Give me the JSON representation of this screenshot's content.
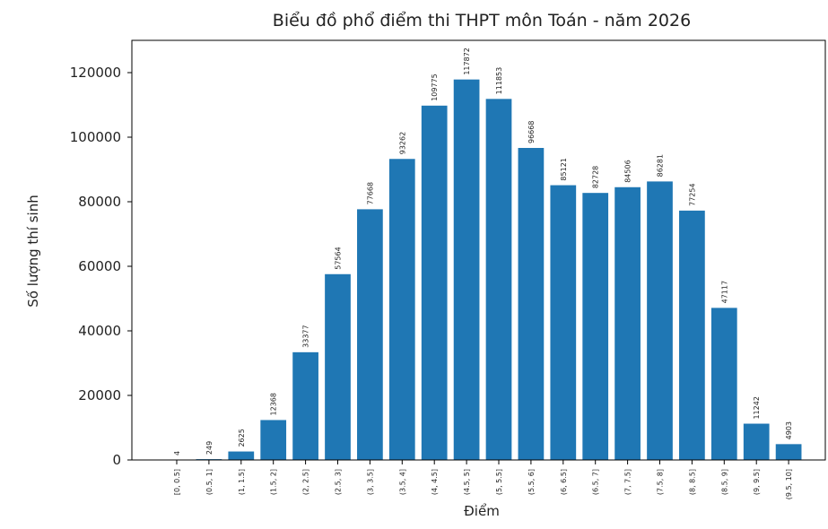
{
  "chart_data": {
    "type": "bar",
    "title": "Biểu đồ phổ điểm thi THPT môn Toán - năm 2026",
    "x_label": "Điểm",
    "y_label": "Số lượng thí sinh",
    "categories": [
      "[0, 0.5]",
      "(0.5, 1]",
      "(1, 1.5]",
      "(1.5, 2]",
      "(2, 2.5]",
      "(2.5, 3]",
      "(3, 3.5]",
      "(3.5, 4]",
      "(4, 4.5]",
      "(4.5, 5]",
      "(5, 5.5]",
      "(5.5, 6]",
      "(6, 6.5]",
      "(6.5, 7]",
      "(7, 7.5]",
      "(7.5, 8]",
      "(8, 8.5]",
      "(8.5, 9]",
      "(9, 9.5]",
      "(9.5, 10]"
    ],
    "values": [
      4,
      249,
      2625,
      12368,
      33377,
      57564,
      77668,
      93262,
      109775,
      117872,
      111853,
      96668,
      85121,
      82728,
      84506,
      86281,
      77254,
      47117,
      11242,
      4903
    ],
    "color": "#1f77b4",
    "ylim": [
      0,
      130000
    ],
    "yticks": [
      0,
      20000,
      40000,
      60000,
      80000,
      100000,
      120000
    ],
    "grid": false
  }
}
